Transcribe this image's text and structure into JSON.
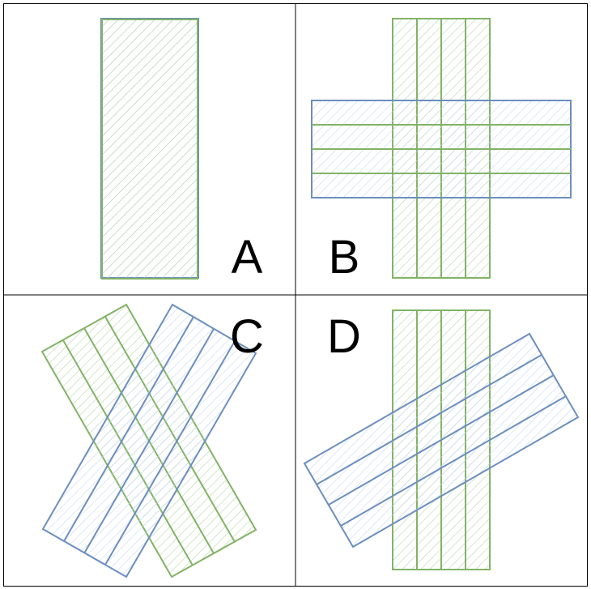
{
  "colors": {
    "green_stroke": "#82b366",
    "green_fill": "#d5e8d4",
    "blue_stroke": "#6c8ebf",
    "blue_fill": "#dae8fc",
    "border": "#000000",
    "background": "#ffffff"
  },
  "panels": {
    "A": {
      "label": "A"
    },
    "B": {
      "label": "B"
    },
    "C": {
      "label": "C"
    },
    "D": {
      "label": "D"
    }
  }
}
